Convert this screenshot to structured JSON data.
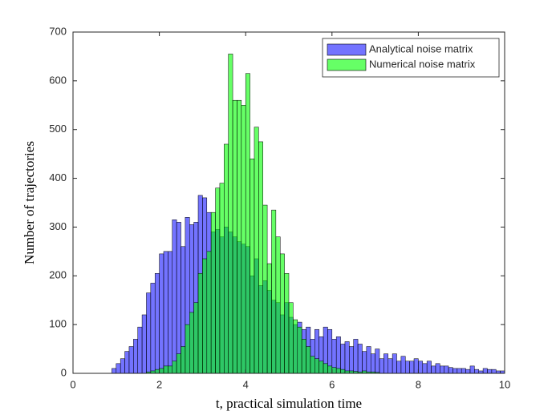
{
  "chart_data": {
    "type": "histogram",
    "xlabel": "t, practical simulation time",
    "ylabel": "Number of trajectories",
    "bins": [
      0,
      0.1,
      0.2,
      0.3,
      0.4,
      0.5,
      0.6,
      0.7,
      0.8,
      0.9,
      1,
      1.1,
      1.2,
      1.3,
      1.4,
      1.5,
      1.6,
      1.7,
      1.8,
      1.9,
      2,
      2.1,
      2.2,
      2.3,
      2.4,
      2.5,
      2.6,
      2.7,
      2.8,
      2.9,
      3,
      3.1,
      3.2,
      3.3,
      3.4,
      3.5,
      3.6,
      3.7,
      3.8,
      3.9,
      4,
      4.1,
      4.2,
      4.3,
      4.4,
      4.5,
      4.6,
      4.7,
      4.8,
      4.9,
      5,
      5.1,
      5.2,
      5.3,
      5.4,
      5.5,
      5.6,
      5.7,
      5.8,
      5.9,
      6,
      6.1,
      6.2,
      6.3,
      6.4,
      6.5,
      6.6,
      6.7,
      6.8,
      6.9,
      7,
      7.1,
      7.2,
      7.3,
      7.4,
      7.5,
      7.6,
      7.7,
      7.8,
      7.9,
      8,
      8.1,
      8.2,
      8.3,
      8.4,
      8.5,
      8.6,
      8.7,
      8.8,
      8.9,
      9,
      9.1,
      9.2,
      9.3,
      9.4,
      9.5,
      9.6,
      9.7,
      9.8,
      9.9,
      10
    ],
    "series": [
      {
        "name": "Analytical noise matrix",
        "color": "#0000ff",
        "alpha": 0.55,
        "values": [
          0,
          0,
          0,
          0,
          0,
          0,
          0,
          0,
          0,
          10,
          20,
          30,
          45,
          55,
          70,
          95,
          120,
          165,
          185,
          205,
          245,
          250,
          250,
          315,
          310,
          260,
          320,
          305,
          310,
          365,
          360,
          330,
          290,
          295,
          280,
          300,
          290,
          280,
          270,
          265,
          260,
          200,
          235,
          180,
          190,
          170,
          150,
          145,
          120,
          145,
          115,
          100,
          105,
          90,
          95,
          70,
          90,
          75,
          95,
          90,
          70,
          75,
          60,
          65,
          55,
          70,
          60,
          45,
          55,
          40,
          50,
          30,
          40,
          30,
          40,
          25,
          35,
          25,
          25,
          30,
          25,
          20,
          25,
          15,
          20,
          15,
          15,
          12,
          10,
          10,
          10,
          8,
          15,
          8,
          5,
          10,
          8,
          8,
          5,
          5
        ]
      },
      {
        "name": "Numerical noise matrix",
        "color": "#00ff00",
        "alpha": 0.6,
        "values": [
          0,
          0,
          0,
          0,
          0,
          0,
          0,
          0,
          0,
          0,
          0,
          0,
          0,
          0,
          0,
          0,
          0,
          3,
          5,
          8,
          10,
          15,
          15,
          25,
          40,
          55,
          100,
          125,
          145,
          205,
          235,
          250,
          330,
          380,
          390,
          470,
          655,
          560,
          560,
          550,
          615,
          440,
          505,
          475,
          345,
          225,
          335,
          280,
          245,
          205,
          145,
          110,
          95,
          70,
          55,
          35,
          30,
          25,
          20,
          15,
          12,
          10,
          8,
          5,
          5,
          4,
          3,
          5,
          3,
          3,
          2,
          0,
          0,
          0,
          0,
          0,
          0,
          0,
          0,
          0,
          0,
          0,
          0,
          0,
          0,
          0,
          0,
          0,
          0,
          0,
          0,
          0,
          0,
          0,
          0,
          0,
          0,
          0,
          0,
          0
        ]
      }
    ],
    "xlim": [
      0,
      10
    ],
    "xticks": [
      0,
      2,
      4,
      6,
      8,
      10
    ],
    "ylim": [
      0,
      700
    ],
    "yticks": [
      0,
      100,
      200,
      300,
      400,
      500,
      600,
      700
    ],
    "legend": "top-right",
    "grid": false
  }
}
